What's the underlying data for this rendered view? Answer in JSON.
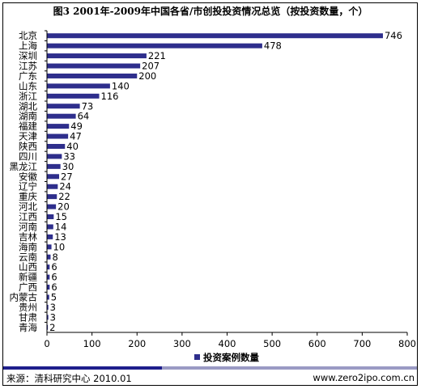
{
  "header": {
    "title": "图3  2001年-2009年中国各省/市创投投资情况总览（按投资数量，个）"
  },
  "footer": {
    "source": "来源：清科研究中心 2010.01",
    "website": "www.zero2ipo.com.cn"
  },
  "colors": {
    "bar": "#2e2e8c",
    "footer_dark": "#1f1f8c",
    "footer_light": "#9a9ac4"
  },
  "chart_data": {
    "type": "bar",
    "orientation": "horizontal",
    "title": "",
    "categories": [
      "北京",
      "上海",
      "深圳",
      "江苏",
      "广东",
      "山东",
      "浙江",
      "湖北",
      "湖南",
      "福建",
      "天津",
      "陕西",
      "四川",
      "黑龙江",
      "安徽",
      "辽宁",
      "重庆",
      "河北",
      "江西",
      "河南",
      "吉林",
      "海南",
      "云南",
      "山西",
      "新疆",
      "广西",
      "内蒙古",
      "贵州",
      "甘肃",
      "青海"
    ],
    "series": [
      {
        "name": "投资案例数量",
        "values": [
          746,
          478,
          221,
          207,
          200,
          140,
          116,
          73,
          64,
          49,
          47,
          40,
          33,
          30,
          27,
          24,
          22,
          20,
          15,
          14,
          13,
          10,
          8,
          6,
          6,
          6,
          5,
          3,
          3,
          2
        ]
      }
    ],
    "xlim": [
      0,
      800
    ],
    "xticks": [
      "0",
      "100",
      "200",
      "300",
      "400",
      "500",
      "600",
      "700",
      "800"
    ],
    "grid": false,
    "legend": "bottom"
  }
}
